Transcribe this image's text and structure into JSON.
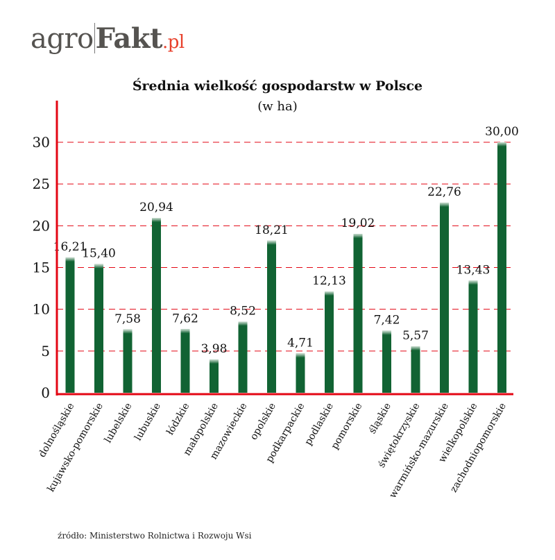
{
  "logo": {
    "part1": "agro",
    "part2": "Fakt",
    "part3": ".pl"
  },
  "source": "źródło: Ministerstwo Rolnictwa i Rozwoju Wsi",
  "colors": {
    "bar": "#116333",
    "axis": "#e30613",
    "grid": "#e30613"
  },
  "chart_data": {
    "type": "bar",
    "title": "Średnia wielkość gospodarstw w Polsce",
    "subtitle": "(w ha)",
    "xlabel": "",
    "ylabel": "",
    "ylim": [
      0,
      30
    ],
    "yticks": [
      "0",
      "5",
      "10",
      "15",
      "20",
      "25",
      "30"
    ],
    "grid": true,
    "categories": [
      "dolnośląskie",
      "kujawsko-pomorskie",
      "lubelskie",
      "lubuskie",
      "łódzkie",
      "małopolskie",
      "mazowieckie",
      "opolskie",
      "podkarpackie",
      "podlaskie",
      "pomorskie",
      "śląskie",
      "świętokrzyskie",
      "warmińsko-mazurskie",
      "wielkopolskie",
      "zachodniopomorskie"
    ],
    "values": [
      16.21,
      15.4,
      7.58,
      20.94,
      7.62,
      3.98,
      8.52,
      18.21,
      4.71,
      12.13,
      19.02,
      7.42,
      5.57,
      22.76,
      13.43,
      30.0
    ],
    "data_labels": [
      "16,21",
      "15,40",
      "7,58",
      "20,94",
      "7,62",
      "3,98",
      "8,52",
      "18,21",
      "4,71",
      "12,13",
      "19,02",
      "7,42",
      "5,57",
      "22,76",
      "13,43",
      "30,00"
    ]
  }
}
